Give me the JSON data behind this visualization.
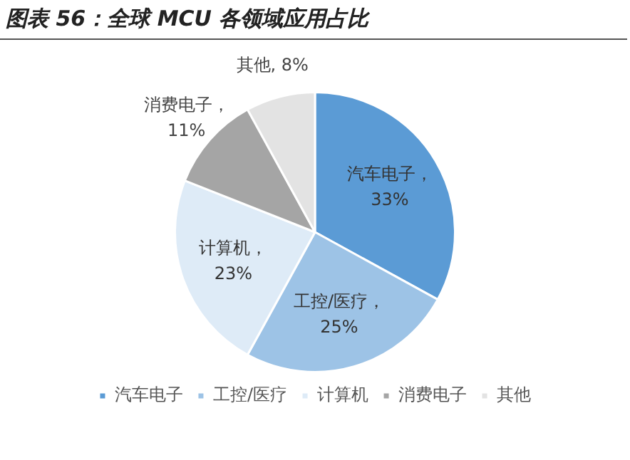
{
  "chart_data": {
    "type": "pie",
    "title": "图表 56：全球 MCU 各领域应用占比",
    "categories": [
      "汽车电子",
      "工控/医疗",
      "计算机",
      "消费电子",
      "其他"
    ],
    "values": [
      33,
      25,
      23,
      11,
      8
    ],
    "value_labels": [
      "汽车电子，\n33%",
      "工控/医疗，\n25%",
      "计算机，\n23%",
      "消费电子，\n11%",
      "其他, 8%"
    ],
    "colors": [
      "#5b9bd5",
      "#9dc3e6",
      "#deebf7",
      "#a5a5a5",
      "#e3e3e3"
    ],
    "legend": "bottom"
  }
}
